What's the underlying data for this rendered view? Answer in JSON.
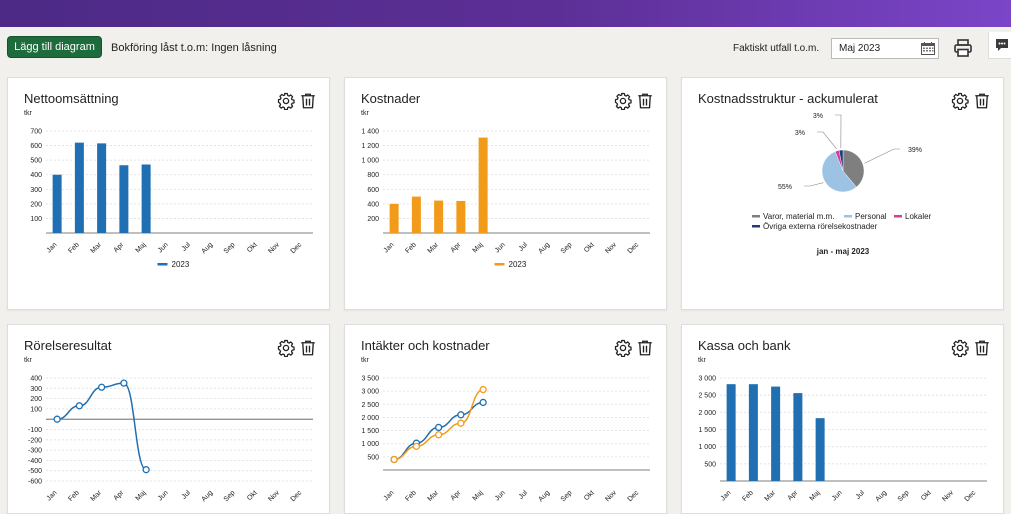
{
  "toolbar": {
    "add_label": "Lägg till diagram",
    "lock_text": "Bokföring låst t.o.m: Ingen låsning",
    "outcome_label": "Faktiskt utfall t.o.m.",
    "month_value": "Maj 2023"
  },
  "colors": {
    "blue": "#1f6fb2",
    "orange": "#f29a1a",
    "pie_gray": "#7f7f7f",
    "pie_light": "#9cc3e3",
    "pie_pink": "#d63b9a",
    "pie_navy": "#1f3c7a"
  },
  "cards": [
    {
      "title": "Nettoomsättning",
      "unit": "tkr"
    },
    {
      "title": "Kostnader",
      "unit": "tkr"
    },
    {
      "title": "Kostnadsstruktur - ackumulerat"
    },
    {
      "title": "Rörelseresultat",
      "unit": "tkr"
    },
    {
      "title": "Intäkter och kostnader",
      "unit": "tkr"
    },
    {
      "title": "Kassa och bank",
      "unit": "tkr"
    }
  ],
  "chart_data": [
    {
      "type": "bar",
      "categories": [
        "Jan",
        "Feb",
        "Mar",
        "Apr",
        "Maj",
        "Jun",
        "Jul",
        "Aug",
        "Sep",
        "Okt",
        "Nov",
        "Dec"
      ],
      "series": [
        {
          "name": "2023",
          "color": "#1f6fb2",
          "values": [
            400,
            620,
            615,
            465,
            470,
            null,
            null,
            null,
            null,
            null,
            null,
            null
          ]
        }
      ],
      "ylim": [
        0,
        700
      ],
      "ticks": [
        100,
        200,
        300,
        400,
        500,
        600,
        700
      ],
      "tick_labels": [
        "100",
        "200",
        "300",
        "400",
        "500",
        "600",
        "700"
      ],
      "legend": "bottom"
    },
    {
      "type": "bar",
      "categories": [
        "Jan",
        "Feb",
        "Mar",
        "Apr",
        "Maj",
        "Jun",
        "Jul",
        "Aug",
        "Sep",
        "Okt",
        "Nov",
        "Dec"
      ],
      "series": [
        {
          "name": "2023",
          "color": "#f29a1a",
          "values": [
            400,
            500,
            445,
            440,
            1310,
            null,
            null,
            null,
            null,
            null,
            null,
            null
          ]
        }
      ],
      "ylim": [
        0,
        1400
      ],
      "ticks": [
        200,
        400,
        600,
        800,
        1000,
        1200,
        1400
      ],
      "tick_labels": [
        "200",
        "400",
        "600",
        "800",
        "1 000",
        "1 200",
        "1 400"
      ],
      "legend": "bottom"
    },
    {
      "type": "pie",
      "slices": [
        {
          "label": "Varor, material m.m.",
          "value": 39,
          "text": "39%",
          "color": "#7f7f7f"
        },
        {
          "label": "Personal",
          "value": 55,
          "text": "55%",
          "color": "#9cc3e3"
        },
        {
          "label": "Lokaler",
          "value": 3,
          "text": "3%",
          "color": "#d63b9a"
        },
        {
          "label": "Övriga externa rörelsekostnader",
          "value": 3,
          "text": "3%",
          "color": "#1f3c7a"
        }
      ],
      "period": "jan - maj 2023",
      "legend": "bottom"
    },
    {
      "type": "line",
      "categories": [
        "Jan",
        "Feb",
        "Mar",
        "Apr",
        "Maj",
        "Jun",
        "Jul",
        "Aug",
        "Sep",
        "Okt",
        "Nov",
        "Dec"
      ],
      "series": [
        {
          "color": "#1f6fb2",
          "values": [
            0,
            130,
            310,
            350,
            -490,
            null,
            null,
            null,
            null,
            null,
            null,
            null
          ]
        }
      ],
      "ylim": [
        -600,
        400
      ],
      "ticks": [
        -600,
        -500,
        -400,
        -300,
        -200,
        -100,
        100,
        200,
        300,
        400
      ],
      "tick_labels": [
        "-600",
        "-500",
        "-400",
        "-300",
        "-200",
        "-100",
        "100",
        "200",
        "300",
        "400"
      ]
    },
    {
      "type": "line",
      "categories": [
        "Jan",
        "Feb",
        "Mar",
        "Apr",
        "Maj",
        "Jun",
        "Jul",
        "Aug",
        "Sep",
        "Okt",
        "Nov",
        "Dec"
      ],
      "series": [
        {
          "color": "#1f6fb2",
          "values": [
            400,
            1020,
            1620,
            2100,
            2570,
            null,
            null,
            null,
            null,
            null,
            null,
            null
          ]
        },
        {
          "color": "#f29a1a",
          "values": [
            400,
            900,
            1340,
            1780,
            3060,
            null,
            null,
            null,
            null,
            null,
            null,
            null
          ]
        }
      ],
      "ylim": [
        0,
        3500
      ],
      "ticks": [
        500,
        1000,
        1500,
        2000,
        2500,
        3000,
        3500
      ],
      "tick_labels": [
        "500",
        "1 000",
        "1 500",
        "2 000",
        "2 500",
        "3 000",
        "3 500"
      ]
    },
    {
      "type": "bar",
      "categories": [
        "Jan",
        "Feb",
        "Mar",
        "Apr",
        "Maj",
        "Jun",
        "Jul",
        "Aug",
        "Sep",
        "Okt",
        "Nov",
        "Dec"
      ],
      "series": [
        {
          "color": "#1f6fb2",
          "values": [
            2820,
            2820,
            2750,
            2560,
            1830,
            null,
            null,
            null,
            null,
            null,
            null,
            null
          ]
        }
      ],
      "ylim": [
        0,
        3000
      ],
      "ticks": [
        500,
        1000,
        1500,
        2000,
        2500,
        3000
      ],
      "tick_labels": [
        "500",
        "1 000",
        "1 500",
        "2 000",
        "2 500",
        "3 000"
      ]
    }
  ]
}
